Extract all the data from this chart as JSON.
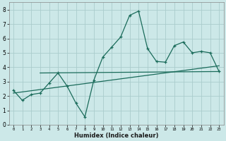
{
  "xlabel": "Humidex (Indice chaleur)",
  "bg_color": "#cce8e8",
  "grid_color": "#aacccc",
  "line_color": "#1a6b5a",
  "xlim": [
    -0.5,
    23.5
  ],
  "ylim": [
    0,
    8.5
  ],
  "xticks": [
    0,
    1,
    2,
    3,
    4,
    5,
    6,
    7,
    8,
    9,
    10,
    11,
    12,
    13,
    14,
    15,
    16,
    17,
    18,
    19,
    20,
    21,
    22,
    23
  ],
  "yticks": [
    0,
    1,
    2,
    3,
    4,
    5,
    6,
    7,
    8
  ],
  "line1_x": [
    0,
    1,
    2,
    3,
    4,
    5,
    6,
    7,
    8,
    9,
    10,
    11,
    12,
    13,
    14,
    15,
    16,
    17,
    18,
    19,
    20,
    21,
    22,
    23
  ],
  "line1_y": [
    2.4,
    1.7,
    2.1,
    2.2,
    2.9,
    3.6,
    2.7,
    1.5,
    0.55,
    3.1,
    4.7,
    5.4,
    6.1,
    7.6,
    7.9,
    5.3,
    4.4,
    4.35,
    5.5,
    5.75,
    5.0,
    5.1,
    5.0,
    3.7
  ],
  "line2_x": [
    3,
    23
  ],
  "line2_y": [
    3.6,
    3.7
  ],
  "line3_x": [
    0,
    23
  ],
  "line3_y": [
    2.2,
    4.1
  ]
}
